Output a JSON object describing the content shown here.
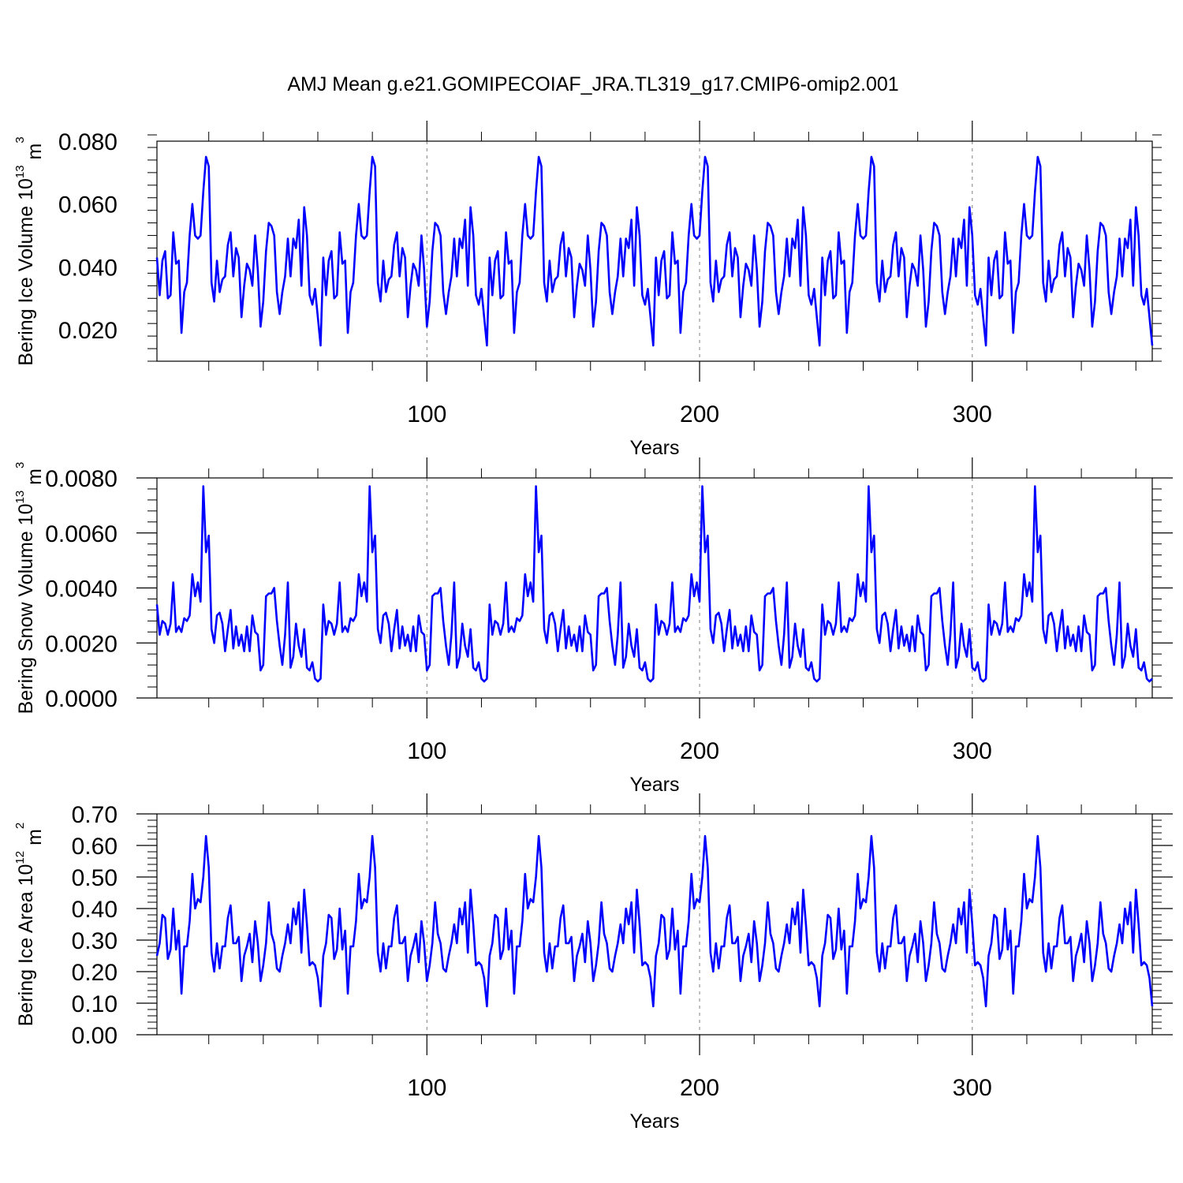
{
  "title": "AMJ Mean g.e21.GOMIPECOIAF_JRA.TL319_g17.CMIP6-omip2.001",
  "colors": {
    "series": "#0000ff",
    "axes": "#000000",
    "refline": "#808080"
  },
  "chart_data": [
    {
      "type": "line",
      "panel": "top",
      "title": "AMJ Mean g.e21.GOMIPECOIAF_JRA.TL319_g17.CMIP6-omip2.001",
      "xlabel": "Years",
      "ylabel": {
        "main": "Bering Ice Volume 10",
        "sup": "13",
        "unit": " m",
        "unit_sup": "3"
      },
      "xlim": [
        1,
        366
      ],
      "ylim": [
        0.01,
        0.08
      ],
      "xticks": [
        100,
        200,
        300
      ],
      "xtick_labels": [
        "100",
        "200",
        "300"
      ],
      "yticks": [
        0.02,
        0.04,
        0.06,
        0.08
      ],
      "ytick_labels": [
        "0.020",
        "0.040",
        "0.060",
        "0.080"
      ],
      "reference_lines_x": [
        100,
        200,
        300
      ],
      "cycle_length": 61,
      "cycles": 6,
      "series": [
        {
          "values": [
            0.043,
            0.031,
            0.042,
            0.045,
            0.03,
            0.031,
            0.051,
            0.041,
            0.042,
            0.019,
            0.032,
            0.035,
            0.05,
            0.06,
            0.05,
            0.049,
            0.05,
            0.064,
            0.075,
            0.072,
            0.035,
            0.029,
            0.042,
            0.032,
            0.036,
            0.037,
            0.047,
            0.051,
            0.037,
            0.046,
            0.043,
            0.024,
            0.034,
            0.041,
            0.039,
            0.034,
            0.05,
            0.039,
            0.021,
            0.029,
            0.045,
            0.054,
            0.053,
            0.05,
            0.032,
            0.025,
            0.032,
            0.037,
            0.049,
            0.037,
            0.049,
            0.046,
            0.055,
            0.034,
            0.059,
            0.05,
            0.031,
            0.028,
            0.033,
            0.024,
            0.015
          ]
        }
      ]
    },
    {
      "type": "line",
      "panel": "middle",
      "xlabel": "Years",
      "ylabel": {
        "main": "Bering Snow Volume 10",
        "sup": "13",
        "unit": " m",
        "unit_sup": "3"
      },
      "xlim": [
        1,
        366
      ],
      "ylim": [
        0.0,
        0.008
      ],
      "xticks": [
        100,
        200,
        300
      ],
      "xtick_labels": [
        "100",
        "200",
        "300"
      ],
      "yticks": [
        0.0,
        0.002,
        0.004,
        0.006,
        0.008
      ],
      "ytick_labels": [
        "0.0000",
        "0.0020",
        "0.0040",
        "0.0060",
        "0.0080"
      ],
      "reference_lines_x": [
        100,
        200,
        300
      ],
      "cycle_length": 61,
      "cycles": 6,
      "series": [
        {
          "values": [
            0.0034,
            0.0023,
            0.0028,
            0.0027,
            0.0023,
            0.0027,
            0.0042,
            0.0024,
            0.0026,
            0.0024,
            0.0029,
            0.0028,
            0.003,
            0.0045,
            0.0037,
            0.0042,
            0.0035,
            0.0077,
            0.0053,
            0.0059,
            0.0025,
            0.002,
            0.003,
            0.0031,
            0.0027,
            0.0017,
            0.0025,
            0.0032,
            0.0018,
            0.0026,
            0.0019,
            0.0023,
            0.0017,
            0.0026,
            0.0017,
            0.003,
            0.0024,
            0.0023,
            0.001,
            0.0012,
            0.0037,
            0.0038,
            0.0038,
            0.004,
            0.0028,
            0.0019,
            0.0012,
            0.0023,
            0.0042,
            0.0011,
            0.0015,
            0.0027,
            0.0019,
            0.0015,
            0.0025,
            0.0011,
            0.001,
            0.0013,
            0.0007,
            0.0006,
            0.0007
          ]
        }
      ]
    },
    {
      "type": "line",
      "panel": "bottom",
      "xlabel": "Years",
      "ylabel": {
        "main": "Bering Ice Area 10",
        "sup": "12",
        "unit": " m",
        "unit_sup": "2"
      },
      "xlim": [
        1,
        366
      ],
      "ylim": [
        0.0,
        0.7
      ],
      "xticks": [
        100,
        200,
        300
      ],
      "xtick_labels": [
        "100",
        "200",
        "300"
      ],
      "yticks": [
        0.0,
        0.1,
        0.2,
        0.3,
        0.4,
        0.5,
        0.6,
        0.7
      ],
      "ytick_labels": [
        "0.00",
        "0.10",
        "0.20",
        "0.30",
        "0.40",
        "0.50",
        "0.60",
        "0.70"
      ],
      "reference_lines_x": [
        100,
        200,
        300
      ],
      "cycle_length": 61,
      "cycles": 6,
      "series": [
        {
          "values": [
            0.25,
            0.29,
            0.38,
            0.37,
            0.24,
            0.27,
            0.4,
            0.27,
            0.33,
            0.13,
            0.28,
            0.28,
            0.36,
            0.51,
            0.4,
            0.43,
            0.42,
            0.5,
            0.63,
            0.53,
            0.26,
            0.2,
            0.29,
            0.21,
            0.28,
            0.28,
            0.37,
            0.41,
            0.29,
            0.29,
            0.31,
            0.17,
            0.25,
            0.28,
            0.32,
            0.23,
            0.36,
            0.29,
            0.17,
            0.22,
            0.29,
            0.42,
            0.32,
            0.29,
            0.21,
            0.2,
            0.25,
            0.29,
            0.35,
            0.29,
            0.4,
            0.35,
            0.42,
            0.26,
            0.46,
            0.35,
            0.22,
            0.23,
            0.22,
            0.18,
            0.09
          ]
        }
      ]
    }
  ]
}
